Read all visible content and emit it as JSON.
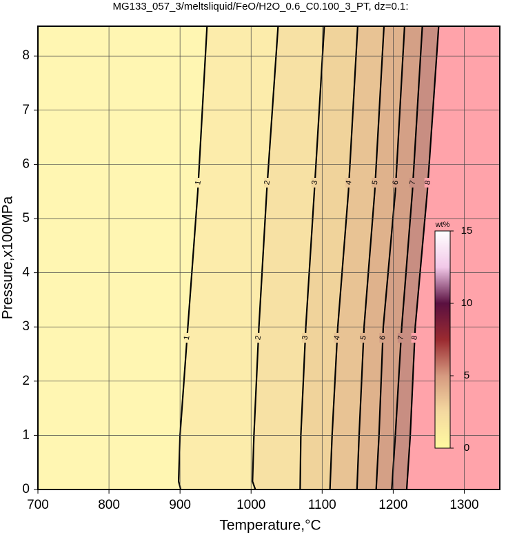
{
  "chart_data": {
    "type": "contour",
    "title": "MG133_057_3/meltsliquid/FeO/H2O_0.6_C0.100_3_PT, dz=0.1:",
    "x_label": "Temperature,°C",
    "y_label": "Pressure,x100MPa",
    "xlim": [
      700,
      1350
    ],
    "ylim": [
      0,
      8.55
    ],
    "xticks": [
      700,
      800,
      900,
      1000,
      1100,
      1200,
      1300
    ],
    "yticks": [
      0,
      1,
      2,
      3,
      4,
      5,
      6,
      7,
      8
    ],
    "grid": true,
    "band_colors": [
      "#fff6b2",
      "#fcecab",
      "#f7e1a4",
      "#f0d39b",
      "#e8c394",
      "#dfb28c",
      "#d4a086",
      "#c88e82",
      "#ffa3aa"
    ],
    "line_color": "#000000",
    "contours": [
      {
        "level": 1,
        "x": [
          901,
          898,
          900,
          911,
          925,
          938
        ],
        "y": [
          0,
          0.15,
          1,
          3,
          5.5,
          8.55
        ]
      },
      {
        "level": 2,
        "x": [
          1006,
          1002,
          1004,
          1011,
          1022,
          1038
        ],
        "y": [
          0,
          0.15,
          1,
          3,
          5.5,
          8.55
        ]
      },
      {
        "level": 3,
        "x": [
          1069,
          1070,
          1077,
          1089,
          1103
        ],
        "y": [
          0,
          1,
          3,
          5.5,
          8.55
        ]
      },
      {
        "level": 4,
        "x": [
          1111,
          1114,
          1122,
          1137,
          1150
        ],
        "y": [
          0,
          1,
          3,
          5.5,
          8.55
        ]
      },
      {
        "level": 5,
        "x": [
          1149,
          1152,
          1159,
          1174,
          1187
        ],
        "y": [
          0,
          1,
          3,
          5.5,
          8.55
        ]
      },
      {
        "level": 6,
        "x": [
          1176,
          1180,
          1186,
          1203,
          1216
        ],
        "y": [
          0,
          1,
          3,
          5.5,
          8.55
        ]
      },
      {
        "level": 7,
        "x": [
          1198,
          1203,
          1212,
          1227,
          1241
        ],
        "y": [
          0,
          1,
          3,
          5.5,
          8.55
        ]
      },
      {
        "level": 8,
        "x": [
          1219,
          1224,
          1231,
          1248,
          1264
        ],
        "y": [
          0,
          1,
          3,
          5.5,
          8.55
        ]
      }
    ],
    "colorbar": {
      "label": "wt%",
      "lim": [
        0,
        15
      ],
      "ticks": [
        0,
        5,
        10,
        15
      ],
      "colors": [
        "#fffaa0",
        "#f4d9a0",
        "#d69a80",
        "#9a2a30",
        "#5a1040",
        "#f2c8e8",
        "#ffffff"
      ]
    }
  }
}
